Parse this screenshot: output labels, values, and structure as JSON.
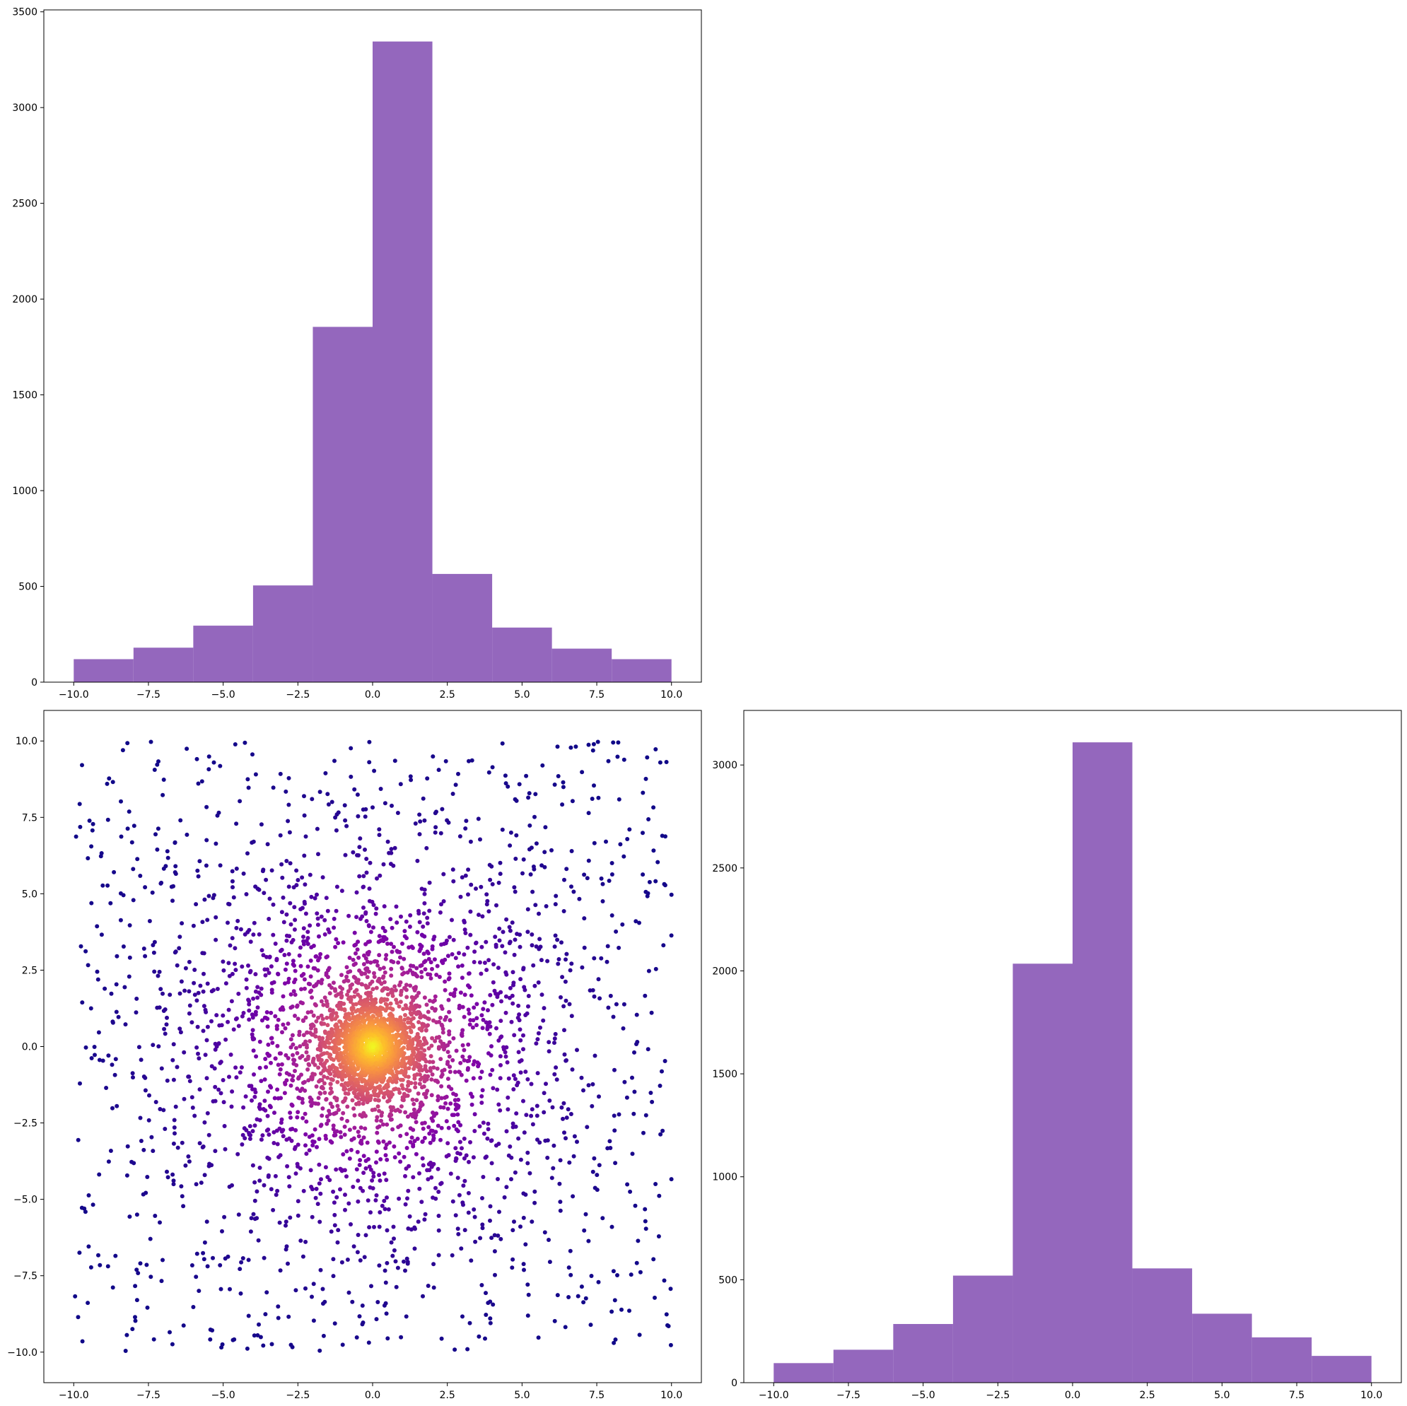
{
  "chart_data": [
    {
      "type": "bar",
      "subtype": "histogram",
      "color": "#9467bd",
      "bin_edges": [
        -10,
        -8,
        -6,
        -4,
        -2,
        0,
        2,
        4,
        6,
        8,
        10
      ],
      "values": [
        120,
        180,
        295,
        505,
        1855,
        3345,
        565,
        285,
        175,
        120
      ],
      "xlim": [
        -11,
        11
      ],
      "ylim": [
        0,
        3510
      ],
      "xticks": [
        -10,
        -7.5,
        -5,
        -2.5,
        0,
        2.5,
        5,
        7.5,
        10
      ],
      "yticks": [
        0,
        500,
        1000,
        1500,
        2000,
        2500,
        3000,
        3500
      ],
      "xtick_labels": [
        "−10.0",
        "−7.5",
        "−5.0",
        "−2.5",
        "0.0",
        "2.5",
        "5.0",
        "7.5",
        "10.0"
      ],
      "ytick_labels": [
        "0",
        "500",
        "1000",
        "1500",
        "2000",
        "2500",
        "3000",
        "3500"
      ],
      "title": "",
      "xlabel": "",
      "ylabel": ""
    },
    {
      "type": "scatter",
      "colormap": "plasma",
      "color_by": "point density (high at center)",
      "distribution": "heavy-tailed, centered at (0, 0), clipped to [-10, 10]",
      "n_points": 4000,
      "xlim": [
        -11,
        11
      ],
      "ylim": [
        -11,
        11
      ],
      "xticks": [
        -10,
        -7.5,
        -5,
        -2.5,
        0,
        2.5,
        5,
        7.5,
        10
      ],
      "yticks": [
        -10,
        -7.5,
        -5,
        -2.5,
        0,
        2.5,
        5,
        7.5,
        10
      ],
      "xtick_labels": [
        "−10.0",
        "−7.5",
        "−5.0",
        "−2.5",
        "0.0",
        "2.5",
        "5.0",
        "7.5",
        "10.0"
      ],
      "ytick_labels": [
        "−10.0",
        "−7.5",
        "−5.0",
        "−2.5",
        "0.0",
        "2.5",
        "5.0",
        "7.5",
        "10.0"
      ],
      "title": "",
      "xlabel": "",
      "ylabel": ""
    },
    {
      "type": "bar",
      "subtype": "histogram",
      "color": "#9467bd",
      "bin_edges": [
        -10,
        -8,
        -6,
        -4,
        -2,
        0,
        2,
        4,
        6,
        8,
        10
      ],
      "values": [
        95,
        160,
        285,
        520,
        2035,
        3110,
        555,
        335,
        220,
        130
      ],
      "xlim": [
        -11,
        11
      ],
      "ylim": [
        0,
        3265
      ],
      "xticks": [
        -10,
        -7.5,
        -5,
        -2.5,
        0,
        2.5,
        5,
        7.5,
        10
      ],
      "yticks": [
        0,
        500,
        1000,
        1500,
        2000,
        2500,
        3000
      ],
      "xtick_labels": [
        "−10.0",
        "−7.5",
        "−5.0",
        "−2.5",
        "0.0",
        "2.5",
        "5.0",
        "7.5",
        "10.0"
      ],
      "ytick_labels": [
        "0",
        "500",
        "1000",
        "1500",
        "2000",
        "2500",
        "3000"
      ],
      "title": "",
      "xlabel": "",
      "ylabel": ""
    }
  ]
}
